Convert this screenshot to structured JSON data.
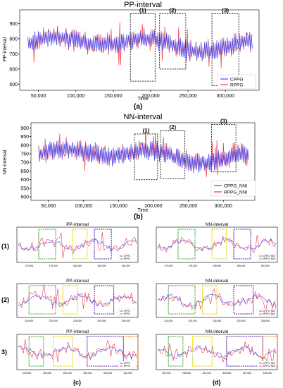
{
  "colors": {
    "series_a": "#4a4af0",
    "series_b": "#f03a4a",
    "box_black": "#111111",
    "box_green": "#3aa83a",
    "box_yellow": "#e8d000",
    "box_purple": "#5a2aa8",
    "box_orange": "#e07a10"
  },
  "chart_data": [
    {
      "type": "line",
      "panel": "(a)",
      "title": "PP-interval",
      "xlabel": "Time",
      "ylabel": "PP-interval",
      "xlim": [
        25000,
        345000
      ],
      "ylim": [
        460,
        990
      ],
      "x_ticks": [
        "50,000",
        "100,000",
        "150,000",
        "200,000",
        "250,000",
        "300,000"
      ],
      "y_ticks": [
        "500",
        "600",
        "700",
        "800",
        "900"
      ],
      "legend": "bottom-right",
      "series": [
        {
          "name": "CPPG",
          "color": "#4a4af0"
        },
        {
          "name": "RPPG",
          "color": "#f03a4a"
        }
      ],
      "boxes": [
        {
          "label": "(1)",
          "x": [
            173000,
            206000
          ],
          "y": [
            520,
            965
          ]
        },
        {
          "label": "(2)",
          "x": [
            212000,
            247000
          ],
          "y": [
            600,
            965
          ]
        },
        {
          "label": "(3)",
          "x": [
            282000,
            318000
          ],
          "y": [
            490,
            965
          ]
        }
      ]
    },
    {
      "type": "line",
      "panel": "(b)",
      "title": "NN-interval",
      "xlabel": "Time",
      "ylabel": "NN-interval",
      "xlim": [
        25000,
        345000
      ],
      "ylim": [
        480,
        930
      ],
      "x_ticks": [
        "50,000",
        "100,000",
        "150,000",
        "200,000",
        "250,000",
        "300,000"
      ],
      "y_ticks": [
        "500",
        "550",
        "600",
        "650",
        "700",
        "750",
        "800",
        "850",
        "900"
      ],
      "legend": "bottom-right",
      "series": [
        {
          "name": "CPPG_NNI",
          "color": "#4a4af0"
        },
        {
          "name": "RPPG_NNI",
          "color": "#f03a4a"
        }
      ],
      "boxes": [
        {
          "label": "(1)",
          "x": [
            173000,
            206000
          ],
          "y": [
            600,
            865
          ]
        },
        {
          "label": "(2)",
          "x": [
            210000,
            245000
          ],
          "y": [
            605,
            885
          ]
        },
        {
          "label": "(3)",
          "x": [
            283000,
            318000
          ],
          "y": [
            645,
            920
          ]
        }
      ]
    }
  ],
  "labels": {
    "a": "(a)",
    "b": "(b)",
    "c": "(c)",
    "d": "(d)",
    "row1": "(1)",
    "row2": "(2)",
    "row3": "3)"
  },
  "small_panels": [
    {
      "title": "PP-interval",
      "legend": [
        "CPPG",
        "RPPG"
      ],
      "ticks": [
        "170,000",
        "175,000",
        "180,000",
        "185,000",
        "190,000"
      ],
      "boxes": [
        "green",
        "yellow",
        "purple"
      ]
    },
    {
      "title": "NN-interval",
      "legend": [
        "CPPG_NNI",
        "RPPG_NNI"
      ],
      "ticks": [
        "170,000",
        "175,000",
        "180,000",
        "185,000",
        "190,000"
      ],
      "boxes": [
        "green",
        "yellow",
        "purple"
      ]
    },
    {
      "title": "PP-interval",
      "legend": [
        "CPPG",
        "RPPG"
      ],
      "ticks": [
        "215,000",
        "220,000",
        "225,000",
        "230,000",
        "235,000"
      ],
      "boxes": [
        "green",
        "yellow",
        "purple"
      ]
    },
    {
      "title": "NN-interval",
      "legend": [
        "CPPG_NNI",
        "RPPG_NNI"
      ],
      "ticks": [
        "215,000",
        "220,000",
        "225,000",
        "230,000",
        "235,000"
      ],
      "boxes": [
        "green",
        "yellow",
        "purple"
      ]
    },
    {
      "title": "PP-interval",
      "legend": [
        "CPPG",
        "RPPG"
      ],
      "ticks": [
        "290,000",
        "295,000",
        "300,000",
        "305,000",
        "310,000",
        "315,000"
      ],
      "boxes": [
        "green",
        "yellow",
        "purple",
        "orange"
      ]
    },
    {
      "title": "NN-interval",
      "legend": [
        "CPPG_NNI",
        "RPPG_NNI"
      ],
      "ticks": [
        "290,000",
        "295,000",
        "300,000",
        "305,000",
        "310,000",
        "315,000"
      ],
      "boxes": [
        "green",
        "yellow",
        "purple",
        "orange"
      ]
    }
  ]
}
